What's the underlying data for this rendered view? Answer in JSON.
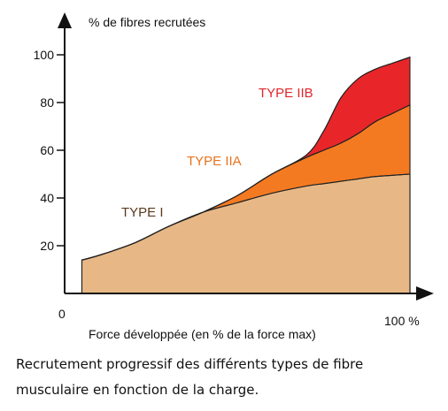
{
  "chart_data": {
    "type": "area",
    "title": "",
    "xlabel": "Force développée (en % de la force max)",
    "ylabel": "% de fibres recrutées",
    "xlim": [
      0,
      100
    ],
    "ylim": [
      0,
      100
    ],
    "x_tick_labels": {
      "start": "0",
      "end": "100 %"
    },
    "y_ticks": [
      20,
      40,
      60,
      80,
      100
    ],
    "grid": false,
    "stacked": true,
    "x": [
      5,
      10,
      20,
      30,
      40,
      50,
      60,
      70,
      75,
      80,
      85,
      90,
      95,
      100
    ],
    "series": [
      {
        "name": "TYPE I",
        "color": "#E7B886",
        "values": [
          14,
          16,
          21,
          28,
          34,
          38,
          42,
          45,
          46,
          47,
          48,
          49,
          49.5,
          50
        ]
      },
      {
        "name": "TYPE IIA",
        "color": "#F47A22",
        "values": [
          0,
          0,
          0,
          0,
          0,
          3,
          8,
          12,
          14,
          16,
          19,
          23,
          26,
          29
        ]
      },
      {
        "name": "TYPE IIB",
        "color": "#E8262A",
        "values": [
          0,
          0,
          0,
          0,
          0,
          0,
          0,
          1,
          8,
          19,
          23,
          22,
          21,
          20
        ]
      }
    ],
    "label_colors": {
      "TYPE I": "#5B3A1E",
      "TYPE IIA": "#E8731F",
      "TYPE IIB": "#E0262B"
    }
  },
  "caption": {
    "line1": "Recrutement progressif des différents types de fibre",
    "line2": "musculaire en fonction   de la charge."
  }
}
